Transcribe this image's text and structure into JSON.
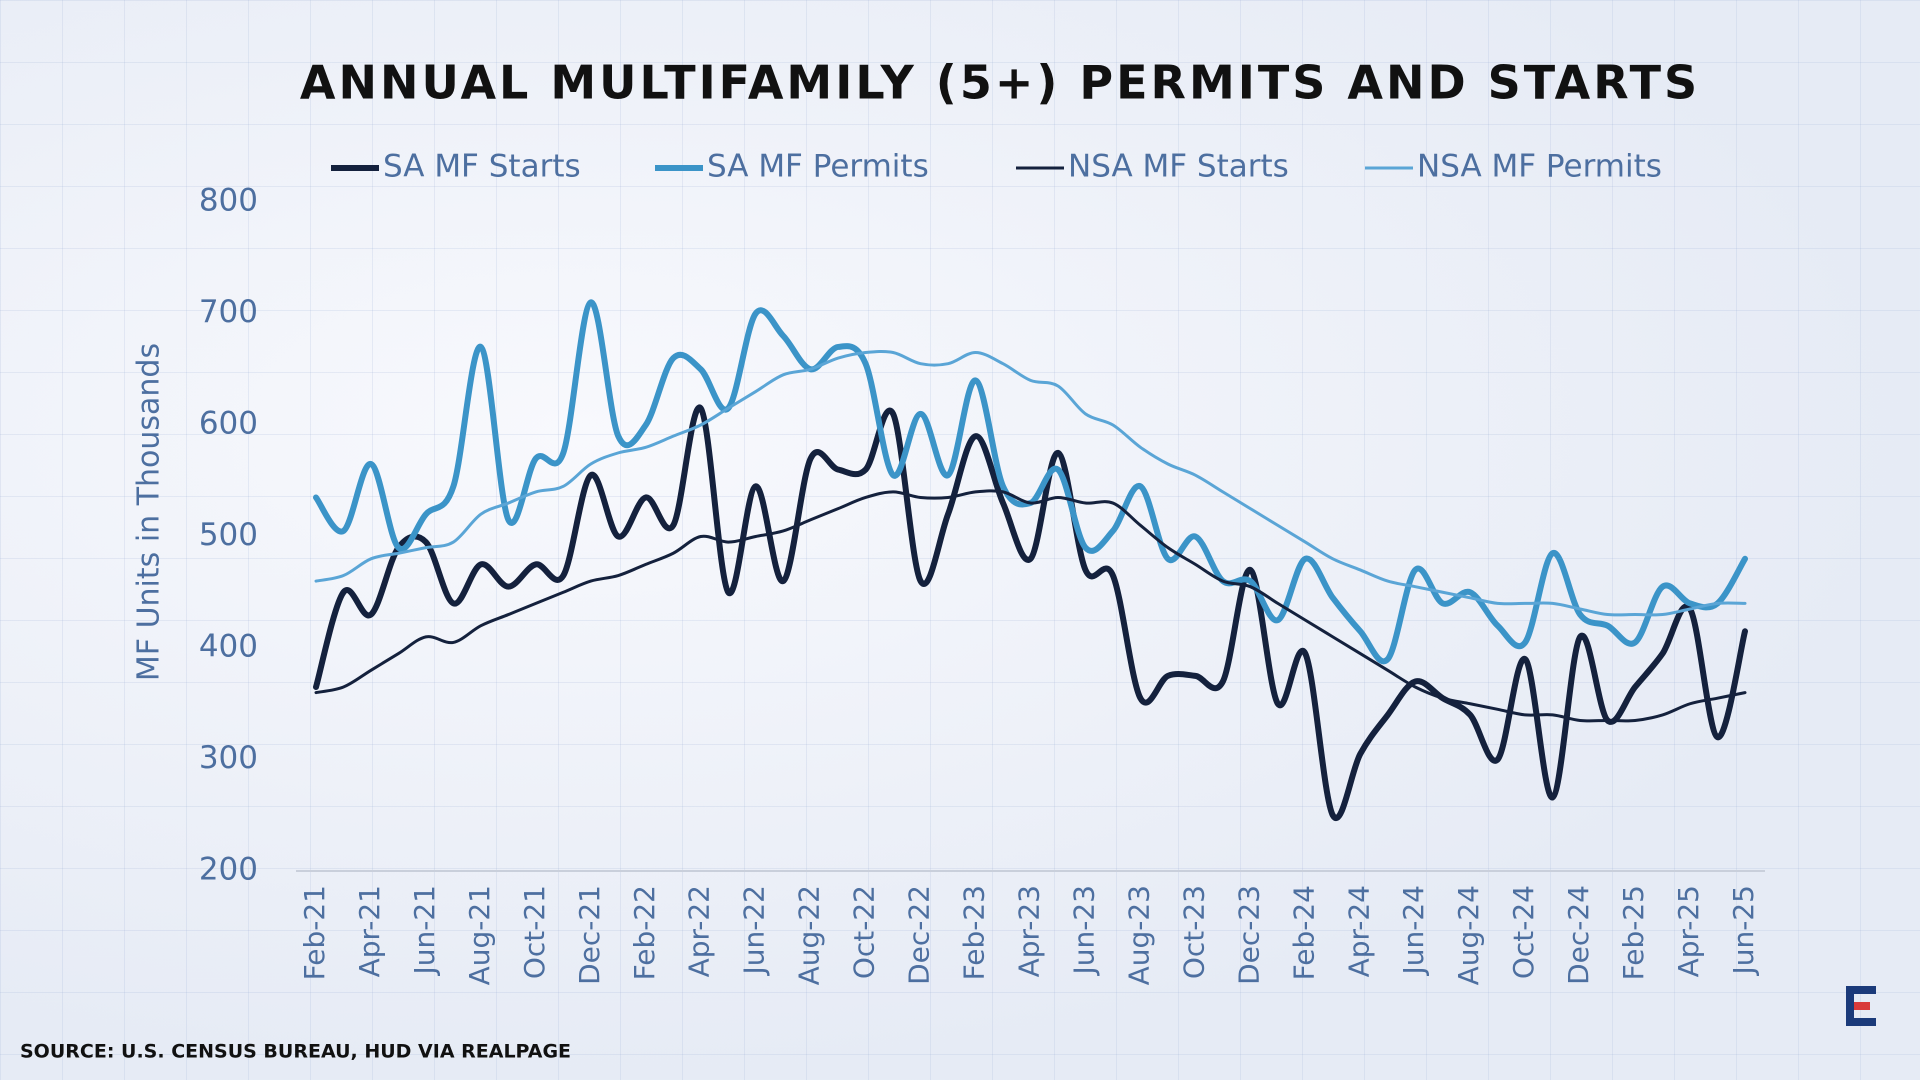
{
  "chart_data": {
    "type": "line",
    "title": "ANNUAL MULTIFAMILY (5+) PERMITS AND STARTS",
    "y_label": "MF Units in Thousands",
    "source": "SOURCE: U.S. CENSUS BUREAU, HUD VIA REALPAGE",
    "categories": [
      "Feb-21",
      null,
      "Apr-21",
      null,
      "Jun-21",
      null,
      "Aug-21",
      null,
      "Oct-21",
      null,
      "Dec-21",
      null,
      "Feb-22",
      null,
      "Apr-22",
      null,
      "Jun-22",
      null,
      "Aug-22",
      null,
      "Oct-22",
      null,
      "Dec-22",
      null,
      "Feb-23",
      null,
      "Apr-23",
      null,
      "Jun-23",
      null,
      "Aug-23",
      null,
      "Oct-23",
      null,
      "Dec-23",
      null,
      "Feb-24",
      null,
      "Apr-24",
      null,
      "Jun-24",
      null,
      "Aug-24",
      null,
      "Oct-24",
      null,
      "Dec-24",
      null,
      "Feb-25",
      null,
      "Apr-25",
      null,
      "Jun-25"
    ],
    "ylim": [
      200,
      800
    ],
    "yticks": [
      200,
      300,
      400,
      500,
      600,
      700,
      800
    ],
    "legend": "top",
    "series": [
      {
        "name": "SA MF Starts",
        "color": "#14213d",
        "values": [
          365,
          450,
          430,
          490,
          495,
          440,
          475,
          455,
          475,
          465,
          555,
          500,
          535,
          510,
          615,
          450,
          545,
          460,
          570,
          560,
          560,
          610,
          460,
          520,
          590,
          530,
          480,
          575,
          470,
          465,
          355,
          375,
          375,
          370,
          470,
          350,
          395,
          250,
          305,
          340,
          370,
          355,
          340,
          300,
          390,
          266,
          410,
          335,
          365,
          395,
          435,
          320,
          415
        ]
      },
      {
        "name": "SA MF Permits",
        "color": "#3b94c8",
        "values": [
          535,
          505,
          565,
          490,
          520,
          545,
          670,
          515,
          570,
          575,
          710,
          590,
          600,
          660,
          650,
          615,
          700,
          680,
          650,
          670,
          655,
          555,
          610,
          555,
          640,
          545,
          530,
          560,
          490,
          505,
          545,
          480,
          500,
          460,
          460,
          425,
          480,
          445,
          415,
          390,
          470,
          440,
          450,
          420,
          405,
          485,
          430,
          420,
          405,
          455,
          440,
          440,
          480
        ]
      },
      {
        "name": "NSA MF Starts",
        "color": "#14213d",
        "values": [
          360,
          365,
          380,
          395,
          410,
          405,
          420,
          430,
          440,
          450,
          460,
          465,
          475,
          485,
          500,
          495,
          500,
          505,
          515,
          525,
          535,
          540,
          535,
          535,
          540,
          540,
          530,
          535,
          530,
          530,
          510,
          490,
          475,
          460,
          455,
          440,
          425,
          410,
          395,
          380,
          365,
          355,
          350,
          345,
          340,
          340,
          335,
          335,
          335,
          340,
          350,
          355,
          360
        ]
      },
      {
        "name": "NSA MF Permits",
        "color": "#5aa5d6",
        "values": [
          460,
          465,
          480,
          485,
          490,
          495,
          520,
          530,
          540,
          545,
          565,
          575,
          580,
          590,
          600,
          615,
          630,
          645,
          650,
          660,
          665,
          665,
          655,
          655,
          665,
          655,
          640,
          635,
          610,
          600,
          580,
          565,
          555,
          540,
          525,
          510,
          495,
          480,
          470,
          460,
          455,
          450,
          445,
          440,
          440,
          440,
          435,
          430,
          430,
          430,
          435,
          440,
          440
        ]
      }
    ]
  }
}
